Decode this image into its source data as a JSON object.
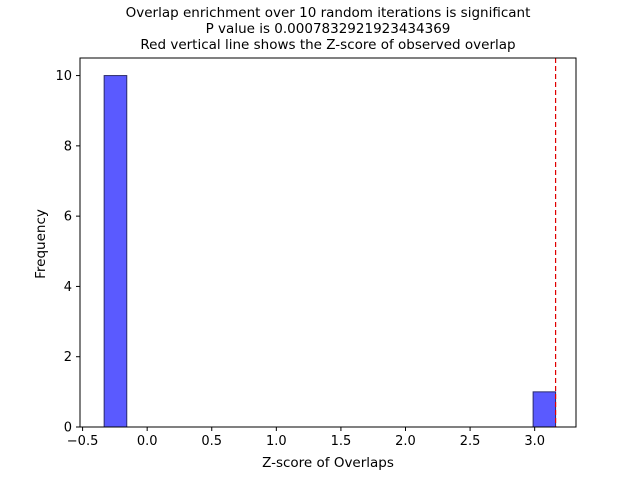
{
  "chart_data": {
    "type": "bar",
    "title_lines": [
      "Overlap enrichment over 10 random iterations is significant",
      "P value is 0.0007832921923434369",
      "Red vertical line shows the Z-score of observed overlap"
    ],
    "xlabel": "Z-score of Overlaps",
    "ylabel": "Frequency",
    "xlim": [
      -0.52,
      3.32
    ],
    "ylim": [
      0,
      10.5
    ],
    "xticks": [
      -0.5,
      0.0,
      0.5,
      1.0,
      1.5,
      2.0,
      2.5,
      3.0
    ],
    "xtick_labels": [
      "−0.5",
      "0.0",
      "0.5",
      "1.0",
      "1.5",
      "2.0",
      "2.5",
      "3.0"
    ],
    "yticks": [
      0,
      2,
      4,
      6,
      8,
      10
    ],
    "ytick_labels": [
      "0",
      "2",
      "4",
      "6",
      "8",
      "10"
    ],
    "bins": [
      {
        "x0": -0.333,
        "x1": -0.158,
        "count": 10
      },
      {
        "x0": 2.988,
        "x1": 3.162,
        "count": 1
      }
    ],
    "observed_zscore": 3.162,
    "colors": {
      "bar_fill": "#5a5aff",
      "bar_edge": "#2b2b6b",
      "observed_line": "#e00000",
      "axis": "#000000"
    }
  }
}
